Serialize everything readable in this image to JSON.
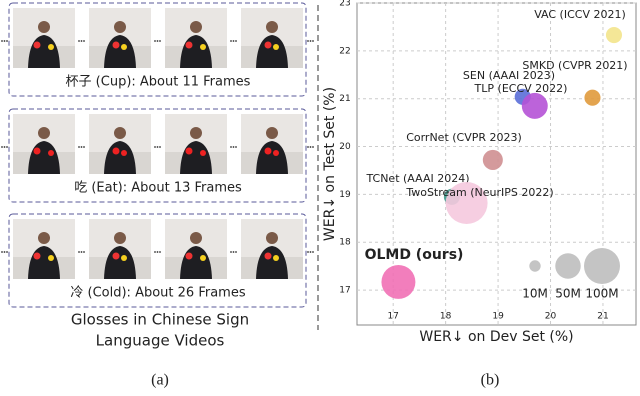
{
  "panel_a": {
    "groups": [
      {
        "caption": "杯子 (Cup): About  11 Frames"
      },
      {
        "caption": "吃 (Eat): About  13 Frames"
      },
      {
        "caption": "冷 (Cold): About  26 Frames"
      }
    ],
    "caption": [
      "Glosses in Chinese Sign",
      "Language Videos"
    ],
    "label": "(a)"
  },
  "panel_b_label": "(b)",
  "chart_data": {
    "type": "scatter",
    "xlabel": "WER↓ on Dev Set (%)",
    "ylabel": "WER↓ on Test Set (%)",
    "xlim": [
      16.31,
      21.63
    ],
    "ylim": [
      16.27,
      23.0
    ],
    "xticks": [
      17,
      18,
      19,
      20,
      21
    ],
    "yticks": [
      17,
      18,
      19,
      20,
      21,
      22,
      23
    ],
    "grid": true,
    "series": [
      {
        "name": "VAC (ICCV 2021)",
        "color": "#f3e48c",
        "x": [
          21.21
        ],
        "values": [
          22.33
        ],
        "sizes": [
          20
        ]
      },
      {
        "name": "SMKD (CVPR 2021)",
        "color": "#e09a3c",
        "x": [
          20.8
        ],
        "values": [
          21.02
        ],
        "sizes": [
          20
        ]
      },
      {
        "name": "SEN (AAAI 2023)",
        "color": "#5a6ed8",
        "x": [
          19.47
        ],
        "values": [
          21.04
        ],
        "sizes": [
          20
        ]
      },
      {
        "name": "TLP (ECCV 2022)",
        "color": "#b552d6",
        "x": [
          19.7
        ],
        "values": [
          20.85
        ],
        "sizes": [
          52
        ]
      },
      {
        "name": "CorrNet (CVPR 2023)",
        "color": "#cf8f91",
        "x": [
          18.9
        ],
        "values": [
          19.72
        ],
        "sizes": [
          31
        ]
      },
      {
        "name": "TCNet (AAAI 2024)",
        "color": "#3f9a8c",
        "x": [
          18.12
        ],
        "values": [
          18.95
        ],
        "sizes": [
          20
        ]
      },
      {
        "name": "TwoStream (NeurIPS 2022)",
        "color": "#f5c9de",
        "x": [
          18.4
        ],
        "values": [
          18.82
        ],
        "sizes": [
          136
        ]
      },
      {
        "name": "OLMD (ours)",
        "color": "#f170b5",
        "x": [
          17.1
        ],
        "values": [
          17.17
        ],
        "sizes": [
          89
        ]
      }
    ],
    "size_legend": [
      {
        "value": 10,
        "label": "10M"
      },
      {
        "value": 50,
        "label": "50M"
      },
      {
        "value": 100,
        "label": "100M"
      }
    ],
    "size_legend_color": "#c4c4c4"
  }
}
